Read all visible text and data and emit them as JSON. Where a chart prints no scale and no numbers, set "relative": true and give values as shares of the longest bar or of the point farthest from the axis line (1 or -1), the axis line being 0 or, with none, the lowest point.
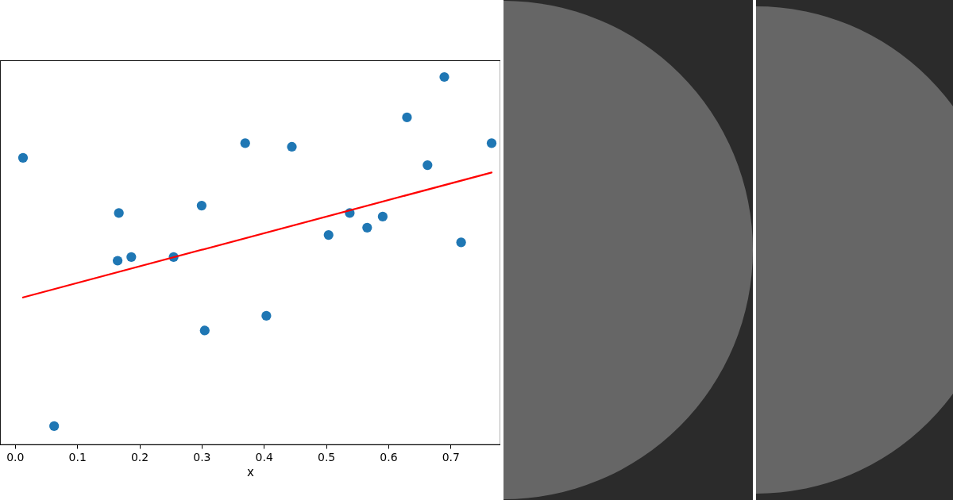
{
  "chart_data": {
    "type": "scatter",
    "xlabel": "x",
    "xlim": [
      -0.024,
      0.78
    ],
    "xticks": [
      {
        "value": 0,
        "label": "0.0"
      },
      0.1,
      0.2,
      0.3,
      0.4,
      0.5,
      0.6,
      0.7
    ],
    "relative": true,
    "tick_labels": "x",
    "series": [
      {
        "marker": "circle",
        "color": "#1f77b4",
        "x": [
          0.013,
          0.063,
          0.165,
          0.167,
          0.187,
          0.255,
          0.3,
          0.305,
          0.37,
          0.404,
          0.445,
          0.504,
          0.538,
          0.566,
          0.591,
          0.63,
          0.663,
          0.69,
          0.717,
          0.766
        ],
        "values": [
          0.78,
          0.05,
          0.5,
          0.63,
          0.51,
          0.51,
          0.65,
          0.31,
          0.82,
          0.35,
          0.81,
          0.57,
          0.63,
          0.59,
          0.62,
          0.89,
          0.76,
          1,
          0.55,
          0.82
        ]
      },
      {
        "type": "line",
        "color": "#ff0000",
        "x": [
          0.013,
          0.766
        ],
        "values": [
          0.4,
          0.74
        ]
      }
    ]
  }
}
